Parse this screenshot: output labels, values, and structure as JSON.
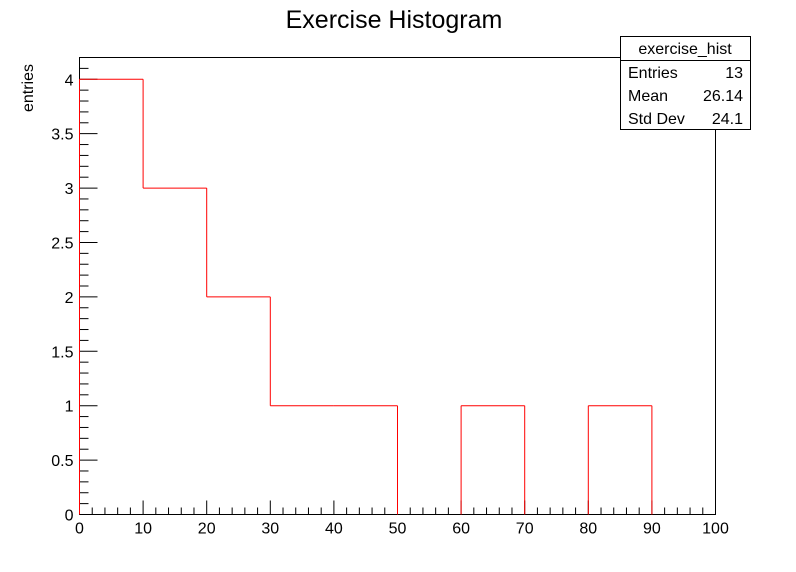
{
  "chart_data": {
    "type": "bar",
    "style": "step-histogram",
    "title": "Exercise Histogram",
    "xlabel": "",
    "ylabel": "entries",
    "xlim": [
      0,
      100
    ],
    "ylim": [
      0,
      4.2
    ],
    "bin_edges": [
      0,
      10,
      20,
      30,
      40,
      50,
      60,
      70,
      80,
      90,
      100
    ],
    "values": [
      4,
      3,
      2,
      1,
      1,
      0,
      1,
      0,
      1,
      0
    ],
    "x_ticks": [
      "0",
      "10",
      "20",
      "30",
      "40",
      "50",
      "60",
      "70",
      "80",
      "90",
      "100"
    ],
    "y_ticks": [
      "0",
      "0.5",
      "1",
      "1.5",
      "2",
      "2.5",
      "3",
      "3.5",
      "4"
    ],
    "grid": false,
    "line_color": "#ff0000",
    "stats_box": {
      "name": "exercise_hist",
      "rows": [
        {
          "label": "Entries",
          "value": "13"
        },
        {
          "label": "Mean",
          "value": "26.14"
        },
        {
          "label": "Std Dev",
          "value": "24.1"
        }
      ]
    }
  }
}
